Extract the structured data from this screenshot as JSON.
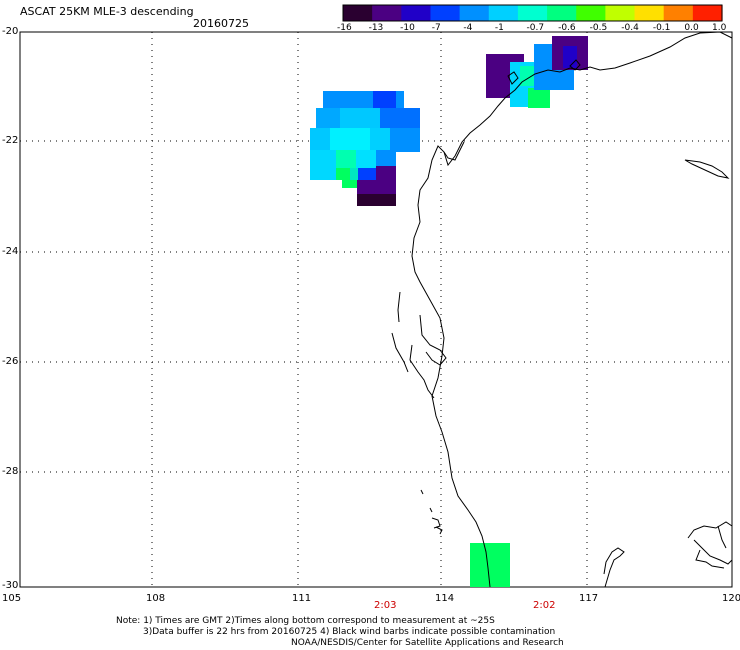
{
  "header": {
    "title": "ASCAT 25KM MLE-3 descending",
    "date": "20160725"
  },
  "colorbar": {
    "tick_labels": [
      "-16",
      "-13",
      "-10",
      "-7",
      "-4",
      "-1",
      "-0.7",
      "-0.6",
      "-0.5",
      "-0.4",
      "-0.1",
      "0.0",
      "1.0"
    ],
    "colors": [
      "#2a0030",
      "#4b0082",
      "#2000c8",
      "#0040ff",
      "#0090ff",
      "#00d0ff",
      "#00ffd0",
      "#00ff80",
      "#40ff00",
      "#c0ff00",
      "#ffe000",
      "#ff8000",
      "#ff2000"
    ]
  },
  "axes": {
    "lat_labels": [
      "-20",
      "-22",
      "-24",
      "-26",
      "-28",
      "-30"
    ],
    "lon_labels": [
      "105",
      "108",
      "111",
      "114",
      "117",
      "120"
    ],
    "lon_range": [
      105,
      120
    ],
    "lat_range": [
      -20,
      -30
    ]
  },
  "pass_times": [
    "2:03",
    "2:02"
  ],
  "notes": {
    "line1": "Note: 1) Times are GMT 2)Times along bottom correspond to measurement at ~25S",
    "line2": "3)Data buffer is 22 hrs from 20160725 4) Black wind barbs indicate possible contamination",
    "line3": "NOAA/NESDIS/Center for Satellite Applications and Research"
  }
}
